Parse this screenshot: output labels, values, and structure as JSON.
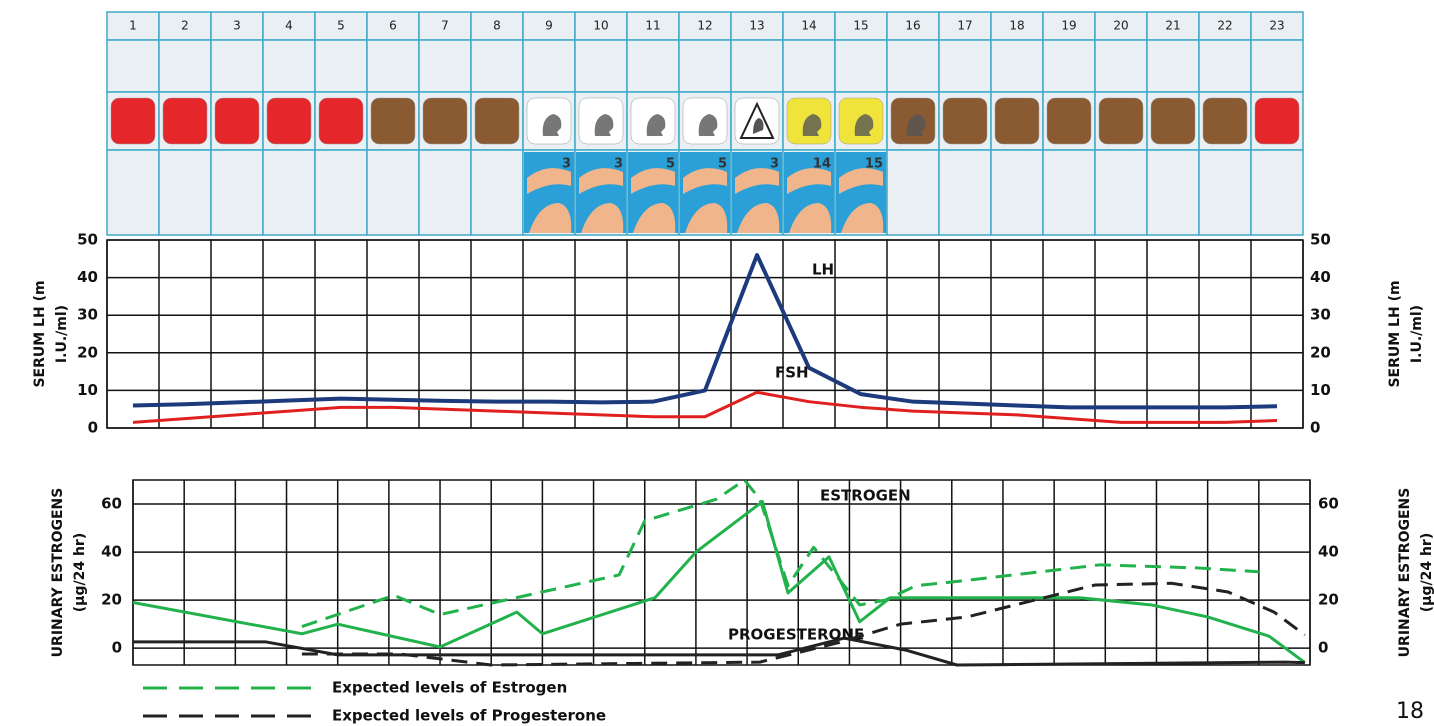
{
  "cycle_table": {
    "days": [
      1,
      2,
      3,
      4,
      5,
      6,
      7,
      8,
      9,
      10,
      11,
      12,
      13,
      14,
      15,
      16,
      17,
      18,
      19,
      20,
      21,
      22,
      23
    ],
    "icon_text": "?",
    "square_colors": [
      "#e5262b",
      "#e5262b",
      "#e5262b",
      "#e5262b",
      "#e5262b",
      "#8a5a32",
      "#8a5a32",
      "#8a5a32",
      "#ffffff",
      "#ffffff",
      "#ffffff",
      "#ffffff",
      "#ffffff",
      "#f0e43a",
      "#f0e43a",
      "#8a5a32",
      "#8a5a32",
      "#8a5a32",
      "#8a5a32",
      "#8a5a32",
      "#8a5a32",
      "#8a5a32",
      "#e5262b"
    ],
    "picture_numbers": [
      null,
      null,
      null,
      null,
      null,
      null,
      null,
      null,
      3,
      3,
      5,
      5,
      3,
      14,
      15,
      null,
      null,
      null,
      null,
      null,
      null,
      null,
      null
    ]
  },
  "chart_data": [
    {
      "type": "line",
      "y_title": [
        "SERUM LH (m",
        "I.U./ml)"
      ],
      "xlim": [
        0.5,
        23.5
      ],
      "ylim": [
        0,
        50
      ],
      "yticks": [
        0,
        10,
        20,
        30,
        40,
        50
      ],
      "grid": true,
      "series": [
        {
          "name": "LH",
          "color": "#1d3a7c",
          "x": [
            1,
            2,
            3,
            4,
            5,
            6,
            7,
            8,
            9,
            10,
            11,
            12,
            13,
            14,
            15,
            16,
            17,
            18,
            19,
            20,
            21,
            22,
            23
          ],
          "values": [
            6,
            6.3,
            6.8,
            7.3,
            7.8,
            7.5,
            7.2,
            7,
            7,
            6.8,
            7,
            10,
            46,
            16,
            9,
            7,
            6.5,
            6,
            5.5,
            5.5,
            5.5,
            5.5,
            5.8
          ]
        },
        {
          "name": "FSH",
          "color": "#e0201e",
          "x": [
            1,
            2,
            3,
            4,
            5,
            6,
            7,
            8,
            9,
            10,
            11,
            12,
            13,
            14,
            15,
            16,
            17,
            18,
            19,
            20,
            21,
            22,
            23
          ],
          "values": [
            1.5,
            2.5,
            3.5,
            4.5,
            5.5,
            5.5,
            5,
            4.5,
            4,
            3.5,
            3,
            3,
            9.5,
            7,
            5.5,
            4.5,
            4,
            3.5,
            2.5,
            1.5,
            1.5,
            1.5,
            2
          ]
        }
      ]
    },
    {
      "type": "line",
      "y_title": [
        "URINARY ESTROGENS",
        "(µg/24 hr)"
      ],
      "xlim": [
        0.5,
        23.5
      ],
      "ylim": [
        -7,
        70
      ],
      "yticks": [
        0,
        20,
        40,
        60
      ],
      "grid": true,
      "series": [
        {
          "name": "ESTROGEN",
          "color": "#22b24c",
          "dash": false,
          "x": [
            0.5,
            3.8,
            4.5,
            6.5,
            8.0,
            8.5,
            10.7,
            11.5,
            12.8,
            13.3,
            14.1,
            14.7,
            15.3,
            16.7,
            19.0,
            20.4,
            21.5,
            22.7,
            23.4
          ],
          "values": [
            19,
            6,
            10,
            0.5,
            15,
            6,
            21,
            40,
            61,
            23,
            38,
            11,
            21,
            21,
            21,
            18,
            13,
            5,
            -6
          ]
        },
        {
          "name": "Expected levels of Estrogen",
          "color": "#22b24c",
          "dash": true,
          "x": [
            3.8,
            5.6,
            6.5,
            10,
            10.5,
            11.9,
            12.45,
            12.75,
            13.3,
            13.8,
            14.7,
            15.2,
            15.8,
            16.7,
            19.4,
            21.3,
            22.5
          ],
          "values": [
            9,
            22,
            14,
            30.5,
            53,
            62,
            70,
            62,
            26,
            42,
            18,
            20,
            26,
            28,
            34.7,
            33.4,
            31.8
          ]
        },
        {
          "name": "PROGESTERONE",
          "color": "#222222",
          "dash": false,
          "x": [
            0.5,
            3.1,
            4.5,
            6.1,
            13.1,
            14.4,
            15.6,
            16.6,
            23.0,
            23.4
          ],
          "values": [
            2.6,
            2.6,
            -2.8,
            -2.8,
            -2.8,
            4.2,
            -0.8,
            -7,
            -5.8,
            -6
          ]
        },
        {
          "name": "Expected levels of Progesterone",
          "color": "#222222",
          "dash": true,
          "x": [
            3.8,
            5.7,
            7.5,
            12.75,
            14.3,
            15.5,
            16.8,
            19.3,
            20.8,
            21.9,
            22.8,
            23.4
          ],
          "values": [
            -2.4,
            -2.4,
            -7,
            -5.8,
            2.4,
            10,
            13,
            26.3,
            27,
            23.4,
            15,
            5.5
          ]
        }
      ]
    }
  ],
  "page_number": 18
}
